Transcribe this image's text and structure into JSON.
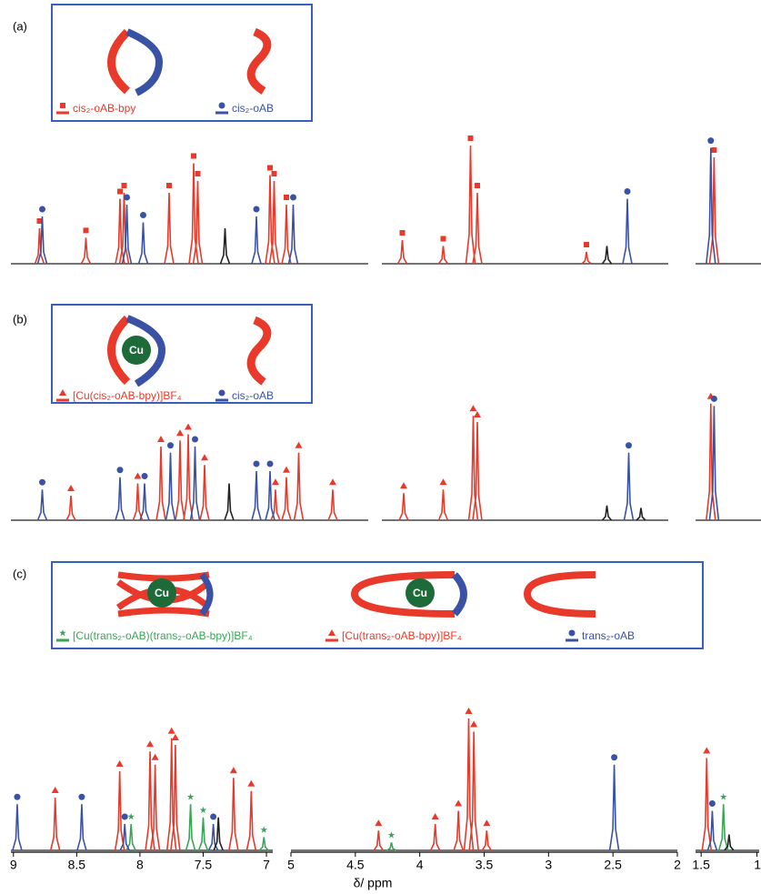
{
  "chart_data": {
    "type": "line",
    "x_label": "δ/ ppm",
    "panels": [
      {
        "label": "(a)",
        "xlims": [
          [
            9.02,
            6.4
          ],
          [
            4.15,
            2.05
          ],
          [
            1.6,
            1.0
          ]
        ],
        "series": [
          {
            "name": "cis₂-oAB-bpy",
            "color": "#e8392a",
            "marker": "square",
            "x": [
              8.81,
              8.47,
              8.22,
              8.19,
              7.86,
              7.68,
              7.65,
              7.12,
              7.09,
              7.0,
              4.0,
              3.7,
              3.5,
              3.45,
              2.65,
              1.43
            ],
            "values": [
              0.3,
              0.22,
              0.55,
              0.6,
              0.6,
              0.85,
              0.7,
              0.75,
              0.7,
              0.5,
              0.2,
              0.15,
              1.0,
              0.6,
              0.1,
              0.9
            ]
          },
          {
            "name": "cis₂-oAB",
            "color": "#3a52a6",
            "marker": "circle",
            "x": [
              8.79,
              8.17,
              8.05,
              7.22,
              6.95,
              2.35,
              1.46
            ],
            "values": [
              0.4,
              0.5,
              0.35,
              0.4,
              0.5,
              0.55,
              0.98
            ]
          },
          {
            "color": "#222222",
            "x": [
              7.45,
              2.5
            ],
            "values": [
              0.3,
              0.15
            ]
          }
        ]
      },
      {
        "label": "(b)",
        "xlims": [
          [
            9.02,
            6.4
          ],
          [
            4.15,
            2.05
          ],
          [
            1.6,
            1.0
          ]
        ],
        "series": [
          {
            "name": "[Cu(cis₂-oAB-bpy)]BF₄",
            "color": "#e8392a",
            "marker": "triangle",
            "x": [
              8.58,
              8.09,
              7.92,
              7.78,
              7.72,
              7.6,
              7.08,
              7.0,
              6.91,
              6.66,
              3.99,
              3.7,
              3.48,
              3.45,
              1.46
            ],
            "values": [
              0.2,
              0.3,
              0.6,
              0.65,
              0.7,
              0.45,
              0.25,
              0.35,
              0.55,
              0.25,
              0.22,
              0.25,
              0.85,
              0.8,
              0.95
            ]
          },
          {
            "name": "cis₂-oAB",
            "color": "#3a52a6",
            "marker": "circle",
            "x": [
              8.79,
              8.22,
              8.04,
              7.85,
              7.67,
              7.22,
              7.12,
              2.34,
              1.43
            ],
            "values": [
              0.25,
              0.35,
              0.3,
              0.55,
              0.6,
              0.4,
              0.4,
              0.55,
              0.93
            ]
          },
          {
            "color": "#222222",
            "x": [
              7.42,
              2.5,
              2.25
            ],
            "values": [
              0.3,
              0.12,
              0.1
            ]
          }
        ]
      },
      {
        "label": "(c)",
        "xlims": [
          [
            9.02,
            6.95
          ],
          [
            5,
            2
          ],
          [
            1.55,
            0.98
          ]
        ],
        "xticks": [
          [
            9,
            8.5,
            8,
            7.5,
            7
          ],
          [
            5,
            4.5,
            4,
            3.5,
            3,
            2.5,
            2
          ],
          [
            1.5,
            1
          ]
        ],
        "series": [
          {
            "name": "[Cu(trans₂-oAB)(trans₂-oAB-bpy)]BF₄",
            "color": "#3aa655",
            "marker": "star",
            "x": [
              8.07,
              7.6,
              7.5,
              7.02,
              4.22,
              1.3
            ],
            "values": [
              0.2,
              0.35,
              0.25,
              0.1,
              0.06,
              0.35
            ]
          },
          {
            "name": "[Cu(trans₂-oAB-bpy)]BF₄",
            "color": "#e8392a",
            "marker": "triangle",
            "x": [
              8.67,
              8.16,
              7.92,
              7.88,
              7.75,
              7.72,
              7.26,
              7.12,
              4.32,
              3.88,
              3.7,
              3.62,
              3.58,
              3.48,
              1.45
            ],
            "values": [
              0.4,
              0.6,
              0.75,
              0.65,
              0.85,
              0.8,
              0.55,
              0.45,
              0.15,
              0.2,
              0.3,
              1.0,
              0.9,
              0.15,
              0.7
            ]
          },
          {
            "name": "trans₂-oAB",
            "color": "#3a52a6",
            "marker": "circle",
            "x": [
              8.97,
              8.46,
              8.12,
              7.42,
              2.49,
              1.4
            ],
            "values": [
              0.35,
              0.35,
              0.2,
              0.2,
              0.65,
              0.3
            ]
          },
          {
            "color": "#222222",
            "x": [
              7.38,
              1.25
            ],
            "values": [
              0.25,
              0.12
            ]
          }
        ]
      }
    ]
  }
}
